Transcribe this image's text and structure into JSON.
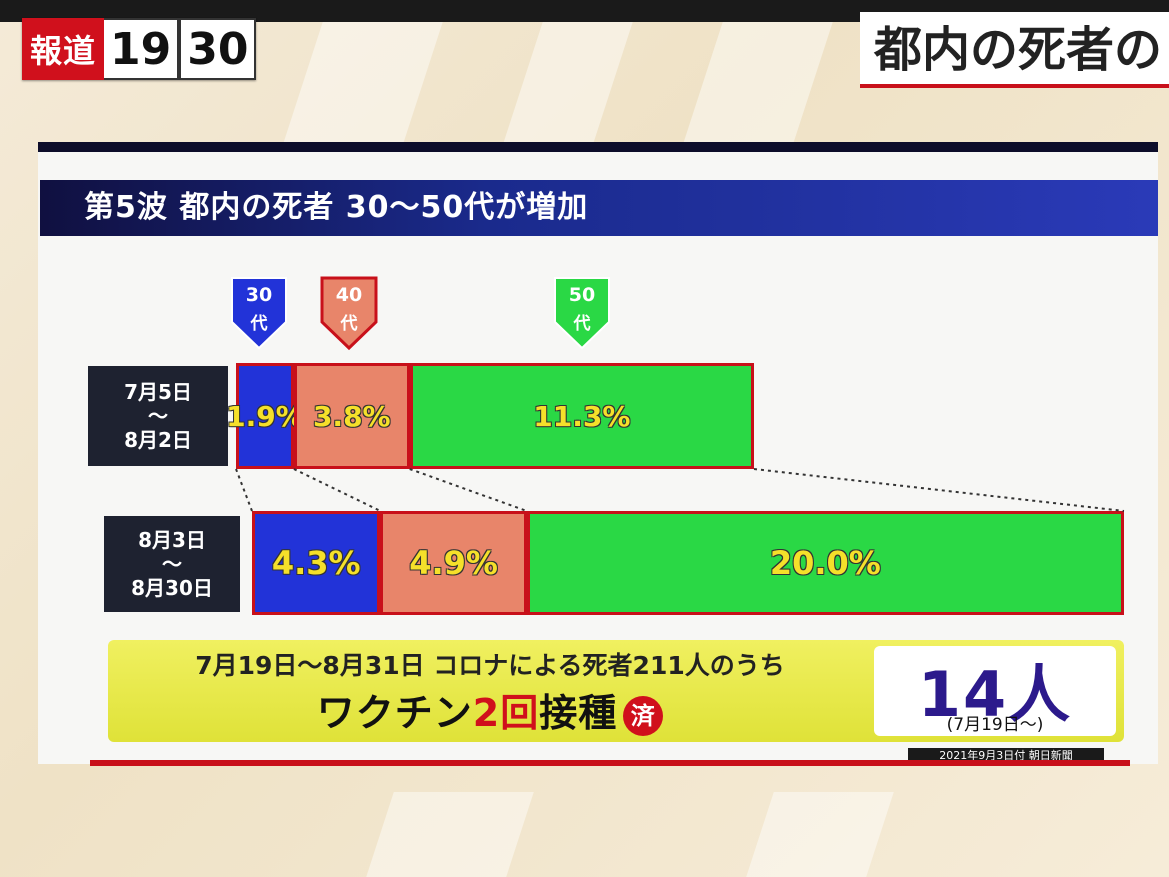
{
  "logo": {
    "station": "報道",
    "time_a": "19",
    "time_b": "30"
  },
  "headline": "都内の死者の",
  "colors": {
    "age30": "#2233d8",
    "age40": "#e8856a",
    "age50": "#2ad845",
    "value_text": "#f5e02a",
    "accent": "#d0101c"
  },
  "chart_data": {
    "type": "bar",
    "title": "第5波 都内の死者 30〜50代が増加",
    "stacked": true,
    "orientation": "horizontal",
    "categories": [
      "7月5日\n〜\n8月2日",
      "8月3日\n〜\n8月30日"
    ],
    "series": [
      {
        "name": "30代",
        "values": [
          1.9,
          4.3
        ],
        "labels": [
          "1.9%",
          "4.3%"
        ]
      },
      {
        "name": "40代",
        "values": [
          3.8,
          4.9
        ],
        "labels": [
          "3.8%",
          "4.9%"
        ]
      },
      {
        "name": "50代",
        "values": [
          11.3,
          20.0
        ],
        "labels": [
          "11.3%",
          "20.0%"
        ]
      }
    ],
    "unit": "%"
  },
  "age_tags": [
    {
      "num": "30",
      "dai": "代"
    },
    {
      "num": "40",
      "dai": "代"
    },
    {
      "num": "50",
      "dai": "代"
    }
  ],
  "periods": [
    {
      "start": "7月5日",
      "sep": "〜",
      "end": "8月2日"
    },
    {
      "start": "8月3日",
      "sep": "〜",
      "end": "8月30日"
    }
  ],
  "vaccine": {
    "line1": "7月19日〜8月31日 コロナによる死者211人のうち",
    "line2_a": "ワクチン",
    "line2_b": "2回",
    "line2_c": "接種",
    "badge": "済",
    "count": "14人",
    "count_note": "(7月19日〜)"
  },
  "source": "2021年9月3日付 朝日新聞"
}
